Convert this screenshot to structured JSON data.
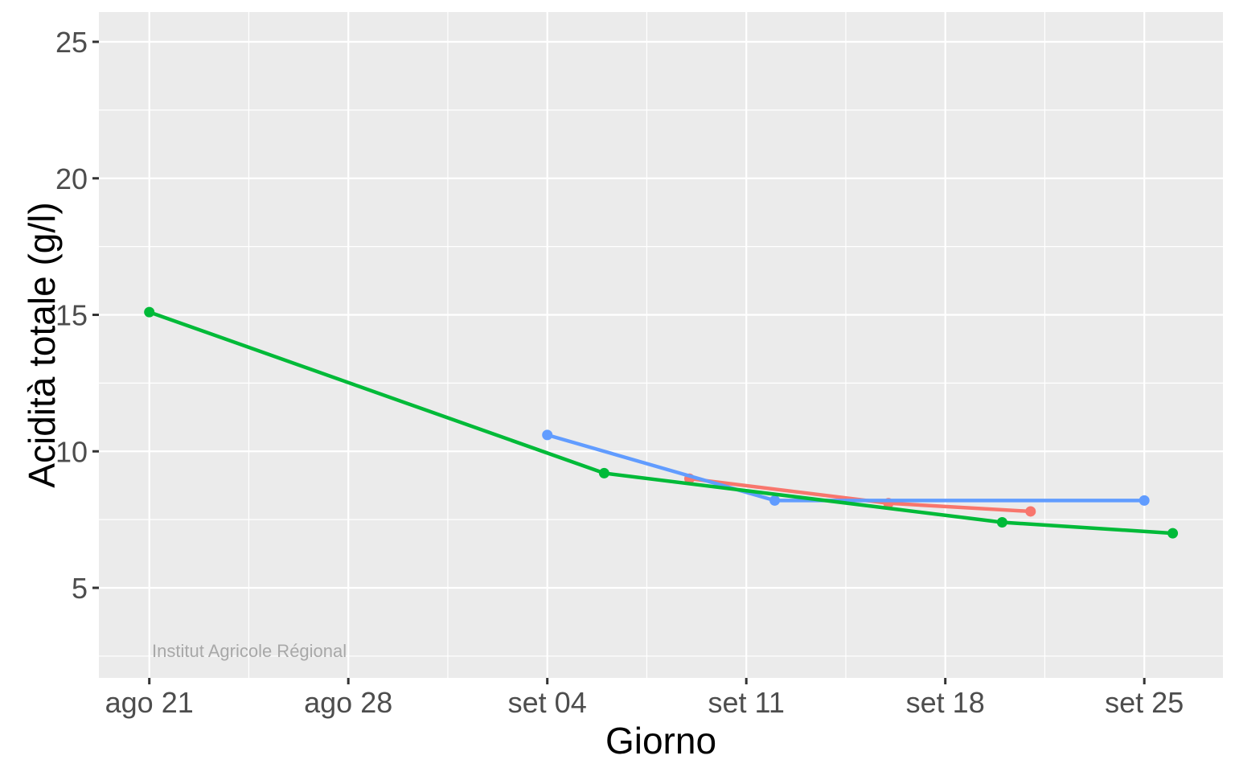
{
  "chart_data": {
    "type": "line",
    "title": "",
    "xlabel": "Giorno",
    "ylabel": "Acidità totale (g/l)",
    "watermark": "Institut Agricole Régional",
    "legend": "none",
    "grid": "major+minor, white on grey panel",
    "x_axis": {
      "tick_labels": [
        "ago 21",
        "ago 28",
        "set 04",
        "set 11",
        "set 18",
        "set 25"
      ],
      "tick_days": [
        0,
        7,
        14,
        21,
        28,
        35
      ],
      "minor_days": [
        3.5,
        10.5,
        17.5,
        24.5,
        31.5
      ],
      "note": "day offset 0 = ago 21 (Aug 21)",
      "xlim_days": [
        -1.8,
        37.8
      ]
    },
    "y_axis": {
      "ticks": [
        5,
        10,
        15,
        20,
        25
      ],
      "tick_labels": [
        "5",
        "10",
        "15",
        "20",
        "25"
      ],
      "minor_ticks": [
        2.5,
        7.5,
        12.5,
        17.5,
        22.5
      ],
      "ylim": [
        1.7,
        26.1
      ]
    },
    "series": [
      {
        "name": "red-series",
        "color": "#F8766D",
        "points": [
          {
            "day": 19,
            "date": "set 09",
            "value": 9.0
          },
          {
            "day": 26,
            "date": "set 16",
            "value": 8.1
          },
          {
            "day": 31,
            "date": "set 21",
            "value": 7.8
          }
        ]
      },
      {
        "name": "blue-series",
        "color": "#619CFF",
        "points": [
          {
            "day": 14,
            "date": "set 04",
            "value": 10.6
          },
          {
            "day": 22,
            "date": "set 12",
            "value": 8.2
          },
          {
            "day": 35,
            "date": "set 25",
            "value": 8.2
          }
        ]
      },
      {
        "name": "green-series",
        "color": "#00BA38",
        "points": [
          {
            "day": 0,
            "date": "ago 21",
            "value": 15.1
          },
          {
            "day": 16,
            "date": "set 06",
            "value": 9.2
          },
          {
            "day": 30,
            "date": "set 20",
            "value": 7.4
          },
          {
            "day": 36,
            "date": "set 26",
            "value": 7.0
          }
        ]
      }
    ],
    "colors": {
      "panel_bg": "#EBEBEB",
      "grid": "#FFFFFF",
      "tick_text": "#4D4D4D",
      "tick_mark": "#333333",
      "axis_title": "#000000",
      "watermark": "#A8A8A8"
    }
  }
}
